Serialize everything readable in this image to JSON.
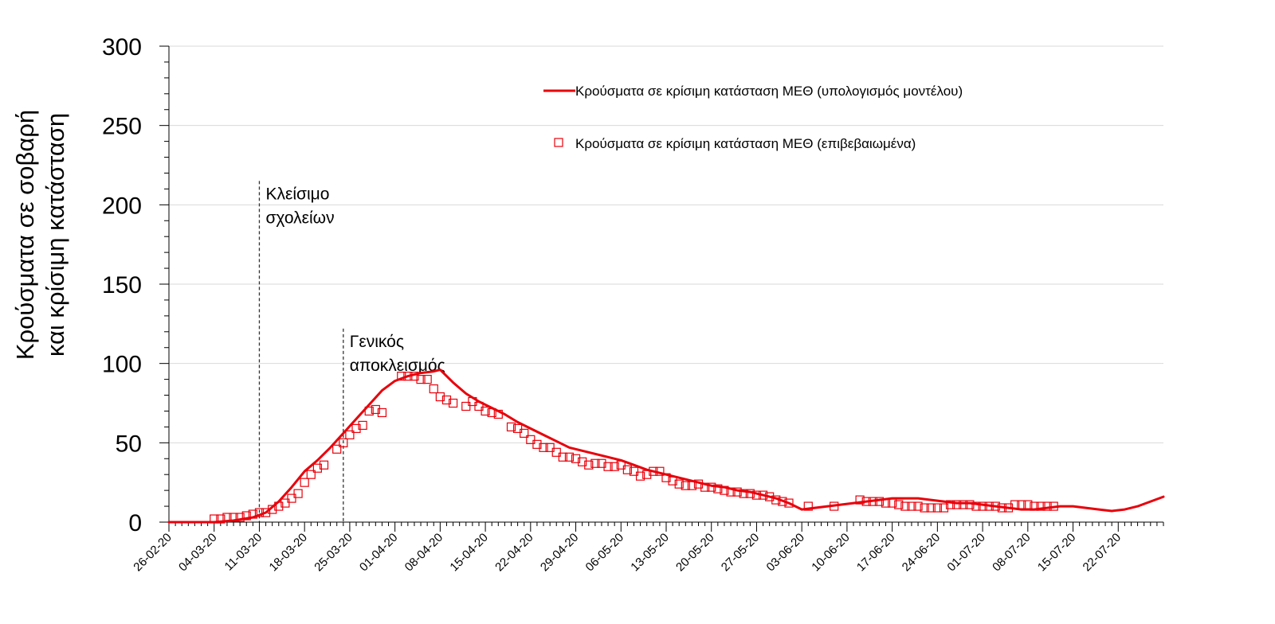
{
  "chart_data": {
    "type": "line",
    "ylabel_line1": "Κρούσματα σε σοβαρή",
    "ylabel_line2": "και κρίσιμη κατάσταση",
    "ylim": [
      0,
      300
    ],
    "y_major_ticks": [
      0,
      50,
      100,
      150,
      200,
      250,
      300
    ],
    "y_minor_step": 10,
    "grid": "horizontal",
    "x_tick_labels": [
      "26-02-20",
      "04-03-20",
      "11-03-20",
      "18-03-20",
      "25-03-20",
      "01-04-20",
      "08-04-20",
      "15-04-20",
      "22-04-20",
      "29-04-20",
      "06-05-20",
      "13-05-20",
      "20-05-20",
      "27-05-20",
      "03-06-20",
      "10-06-20",
      "17-06-20",
      "24-06-20",
      "01-07-20",
      "08-07-20",
      "15-07-20",
      "22-07-20"
    ],
    "x_axis_start": "26-02-20",
    "x_axis_end": "29-07-20",
    "legend_position": "top-right",
    "colors": {
      "line": "#e8000b",
      "marker": "#e8000b",
      "grid": "#d9d9d9",
      "axis": "#000000"
    },
    "annotations": [
      {
        "date": "11-03-20",
        "lines": [
          "Κλείσιμο",
          "σχολείων"
        ],
        "label_top_value": 215
      },
      {
        "date": "24-03-20",
        "lines": [
          "Γενικός",
          "αποκλεισμός"
        ],
        "label_top_value": 122
      }
    ],
    "series": [
      {
        "name": "Κρούσματα σε κρίσιμη κατάσταση ΜΕΘ (υπολογισμός μοντέλου)",
        "style": "line",
        "points": [
          [
            "26-02-20",
            0
          ],
          [
            "04-03-20",
            0
          ],
          [
            "07-03-20",
            1
          ],
          [
            "10-03-20",
            3
          ],
          [
            "12-03-20",
            6
          ],
          [
            "14-03-20",
            13
          ],
          [
            "16-03-20",
            22
          ],
          [
            "18-03-20",
            32
          ],
          [
            "20-03-20",
            39
          ],
          [
            "22-03-20",
            47
          ],
          [
            "24-03-20",
            56
          ],
          [
            "26-03-20",
            65
          ],
          [
            "28-03-20",
            74
          ],
          [
            "30-03-20",
            83
          ],
          [
            "01-04-20",
            89
          ],
          [
            "03-04-20",
            92
          ],
          [
            "05-04-20",
            94
          ],
          [
            "07-04-20",
            95
          ],
          [
            "08-04-20",
            96
          ],
          [
            "10-04-20",
            88
          ],
          [
            "12-04-20",
            81
          ],
          [
            "14-04-20",
            76
          ],
          [
            "16-04-20",
            72
          ],
          [
            "18-04-20",
            68
          ],
          [
            "20-04-20",
            63
          ],
          [
            "22-04-20",
            59
          ],
          [
            "24-04-20",
            55
          ],
          [
            "26-04-20",
            51
          ],
          [
            "28-04-20",
            47
          ],
          [
            "30-04-20",
            45
          ],
          [
            "02-05-20",
            43
          ],
          [
            "04-05-20",
            41
          ],
          [
            "06-05-20",
            39
          ],
          [
            "08-05-20",
            36
          ],
          [
            "10-05-20",
            33
          ],
          [
            "12-05-20",
            31
          ],
          [
            "14-05-20",
            29
          ],
          [
            "16-05-20",
            27
          ],
          [
            "18-05-20",
            25
          ],
          [
            "20-05-20",
            23
          ],
          [
            "22-05-20",
            22
          ],
          [
            "24-05-20",
            20
          ],
          [
            "26-05-20",
            19
          ],
          [
            "28-05-20",
            17
          ],
          [
            "30-05-20",
            15
          ],
          [
            "01-06-20",
            12
          ],
          [
            "03-06-20",
            8
          ],
          [
            "05-06-20",
            9
          ],
          [
            "07-06-20",
            10
          ],
          [
            "09-06-20",
            11
          ],
          [
            "11-06-20",
            12
          ],
          [
            "13-06-20",
            13
          ],
          [
            "15-06-20",
            14
          ],
          [
            "17-06-20",
            15
          ],
          [
            "19-06-20",
            15
          ],
          [
            "21-06-20",
            15
          ],
          [
            "23-06-20",
            14
          ],
          [
            "25-06-20",
            13
          ],
          [
            "27-06-20",
            12
          ],
          [
            "29-06-20",
            12
          ],
          [
            "01-07-20",
            11
          ],
          [
            "03-07-20",
            10
          ],
          [
            "05-07-20",
            9
          ],
          [
            "07-07-20",
            8
          ],
          [
            "09-07-20",
            8
          ],
          [
            "11-07-20",
            9
          ],
          [
            "13-07-20",
            10
          ],
          [
            "15-07-20",
            10
          ],
          [
            "17-07-20",
            9
          ],
          [
            "19-07-20",
            8
          ],
          [
            "21-07-20",
            7
          ],
          [
            "23-07-20",
            8
          ],
          [
            "25-07-20",
            10
          ],
          [
            "27-07-20",
            13
          ],
          [
            "29-07-20",
            16
          ]
        ]
      },
      {
        "name": "Κρούσματα σε κρίσιμη κατάσταση ΜΕΘ (επιβεβαιωμένα)",
        "style": "marker",
        "points": [
          [
            "04-03-20",
            2
          ],
          [
            "05-03-20",
            2
          ],
          [
            "06-03-20",
            3
          ],
          [
            "07-03-20",
            3
          ],
          [
            "08-03-20",
            3
          ],
          [
            "09-03-20",
            4
          ],
          [
            "10-03-20",
            5
          ],
          [
            "11-03-20",
            6
          ],
          [
            "12-03-20",
            6
          ],
          [
            "13-03-20",
            8
          ],
          [
            "14-03-20",
            10
          ],
          [
            "15-03-20",
            12
          ],
          [
            "16-03-20",
            15
          ],
          [
            "17-03-20",
            18
          ],
          [
            "18-03-20",
            25
          ],
          [
            "19-03-20",
            30
          ],
          [
            "20-03-20",
            34
          ],
          [
            "21-03-20",
            36
          ],
          [
            "23-03-20",
            46
          ],
          [
            "24-03-20",
            50
          ],
          [
            "25-03-20",
            55
          ],
          [
            "26-03-20",
            59
          ],
          [
            "27-03-20",
            61
          ],
          [
            "28-03-20",
            70
          ],
          [
            "29-03-20",
            71
          ],
          [
            "30-03-20",
            69
          ],
          [
            "02-04-20",
            92
          ],
          [
            "03-04-20",
            92
          ],
          [
            "04-04-20",
            92
          ],
          [
            "05-04-20",
            90
          ],
          [
            "06-04-20",
            90
          ],
          [
            "07-04-20",
            84
          ],
          [
            "08-04-20",
            79
          ],
          [
            "09-04-20",
            77
          ],
          [
            "10-04-20",
            75
          ],
          [
            "12-04-20",
            73
          ],
          [
            "13-04-20",
            76
          ],
          [
            "14-04-20",
            73
          ],
          [
            "15-04-20",
            70
          ],
          [
            "16-04-20",
            69
          ],
          [
            "17-04-20",
            68
          ],
          [
            "19-04-20",
            60
          ],
          [
            "20-04-20",
            59
          ],
          [
            "21-04-20",
            56
          ],
          [
            "22-04-20",
            52
          ],
          [
            "23-04-20",
            49
          ],
          [
            "24-04-20",
            47
          ],
          [
            "25-04-20",
            47
          ],
          [
            "26-04-20",
            44
          ],
          [
            "27-04-20",
            41
          ],
          [
            "28-04-20",
            41
          ],
          [
            "29-04-20",
            40
          ],
          [
            "30-04-20",
            38
          ],
          [
            "01-05-20",
            36
          ],
          [
            "02-05-20",
            37
          ],
          [
            "03-05-20",
            37
          ],
          [
            "04-05-20",
            35
          ],
          [
            "05-05-20",
            35
          ],
          [
            "06-05-20",
            36
          ],
          [
            "07-05-20",
            33
          ],
          [
            "08-05-20",
            32
          ],
          [
            "09-05-20",
            29
          ],
          [
            "10-05-20",
            30
          ],
          [
            "11-05-20",
            32
          ],
          [
            "12-05-20",
            32
          ],
          [
            "13-05-20",
            28
          ],
          [
            "14-05-20",
            26
          ],
          [
            "15-05-20",
            24
          ],
          [
            "16-05-20",
            23
          ],
          [
            "17-05-20",
            23
          ],
          [
            "18-05-20",
            24
          ],
          [
            "19-05-20",
            22
          ],
          [
            "20-05-20",
            22
          ],
          [
            "21-05-20",
            21
          ],
          [
            "22-05-20",
            20
          ],
          [
            "23-05-20",
            19
          ],
          [
            "24-05-20",
            19
          ],
          [
            "25-05-20",
            18
          ],
          [
            "26-05-20",
            18
          ],
          [
            "27-05-20",
            17
          ],
          [
            "28-05-20",
            17
          ],
          [
            "29-05-20",
            16
          ],
          [
            "30-05-20",
            14
          ],
          [
            "31-05-20",
            13
          ],
          [
            "01-06-20",
            12
          ],
          [
            "04-06-20",
            10
          ],
          [
            "08-06-20",
            10
          ],
          [
            "12-06-20",
            14
          ],
          [
            "13-06-20",
            13
          ],
          [
            "14-06-20",
            13
          ],
          [
            "15-06-20",
            13
          ],
          [
            "16-06-20",
            12
          ],
          [
            "17-06-20",
            12
          ],
          [
            "18-06-20",
            11
          ],
          [
            "19-06-20",
            10
          ],
          [
            "20-06-20",
            10
          ],
          [
            "21-06-20",
            10
          ],
          [
            "22-06-20",
            9
          ],
          [
            "23-06-20",
            9
          ],
          [
            "24-06-20",
            9
          ],
          [
            "25-06-20",
            9
          ],
          [
            "26-06-20",
            11
          ],
          [
            "27-06-20",
            11
          ],
          [
            "28-06-20",
            11
          ],
          [
            "29-06-20",
            11
          ],
          [
            "30-06-20",
            10
          ],
          [
            "01-07-20",
            10
          ],
          [
            "02-07-20",
            10
          ],
          [
            "03-07-20",
            10
          ],
          [
            "04-07-20",
            9
          ],
          [
            "05-07-20",
            9
          ],
          [
            "06-07-20",
            11
          ],
          [
            "07-07-20",
            11
          ],
          [
            "08-07-20",
            11
          ],
          [
            "09-07-20",
            10
          ],
          [
            "10-07-20",
            10
          ],
          [
            "11-07-20",
            10
          ],
          [
            "12-07-20",
            10
          ]
        ]
      }
    ]
  }
}
